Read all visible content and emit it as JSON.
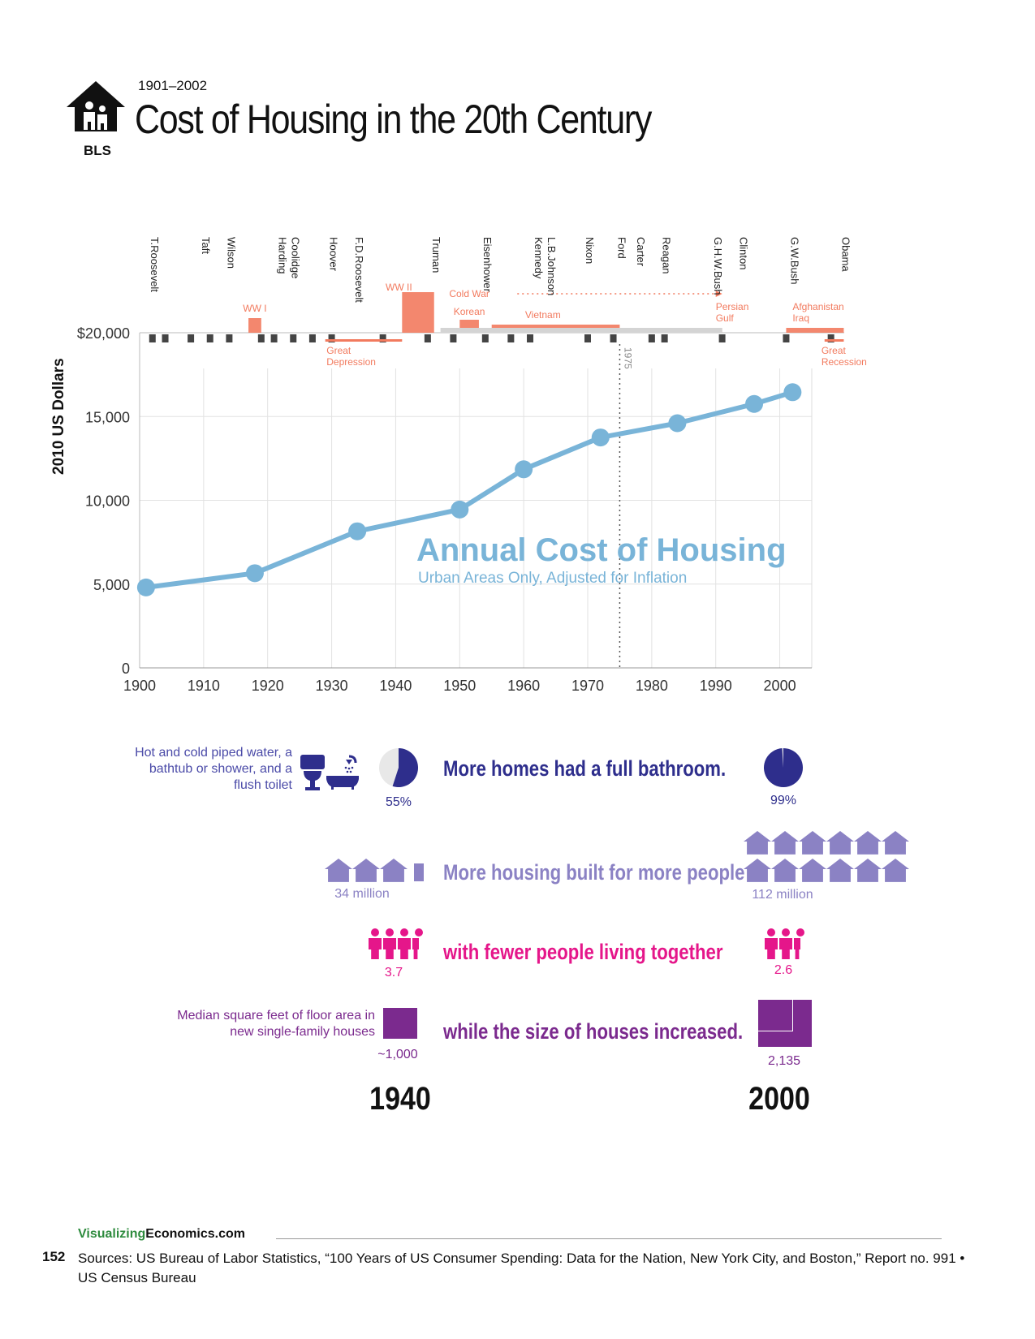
{
  "header": {
    "years": "1901–2002",
    "title": "Cost of Housing in the 20th Century",
    "logo_label": "BLS"
  },
  "chart_data": {
    "type": "line",
    "title": "Annual Cost of Housing",
    "subtitle": "Urban Areas Only, Adjusted for Inflation",
    "ylabel": "2010 US Dollars",
    "xlabel": "",
    "xlim": [
      1900,
      2005
    ],
    "ylim": [
      0,
      20000
    ],
    "x_ticks": [
      1900,
      1910,
      1920,
      1930,
      1940,
      1950,
      1960,
      1970,
      1980,
      1990,
      2000
    ],
    "y_ticks": [
      0,
      5000,
      10000,
      15000,
      20000
    ],
    "y_tick_labels": [
      "0",
      "5,000",
      "10,000",
      "15,000",
      "$20,000"
    ],
    "series": [
      {
        "x": [
          1901,
          1918,
          1934,
          1950,
          1960,
          1972,
          1984,
          1996,
          2002
        ],
        "y": [
          4800,
          5650,
          8150,
          9450,
          11850,
          13750,
          14600,
          15750,
          16450
        ]
      }
    ],
    "marker_1975": "1975",
    "line_color": "#79b4d8",
    "presidents": [
      {
        "name": "T.Roosevelt",
        "year": 1901
      },
      {
        "name": "Taft",
        "year": 1909
      },
      {
        "name": "Wilson",
        "year": 1913
      },
      {
        "name": "Harding",
        "year": 1921
      },
      {
        "name": "Coolidge",
        "year": 1923
      },
      {
        "name": "Hoover",
        "year": 1929
      },
      {
        "name": "F.D.Roosevelt",
        "year": 1933
      },
      {
        "name": "Truman",
        "year": 1945
      },
      {
        "name": "Eisenhower",
        "year": 1953
      },
      {
        "name": "Kennedy",
        "year": 1961
      },
      {
        "name": "L.B.Johnson",
        "year": 1963
      },
      {
        "name": "Nixon",
        "year": 1969
      },
      {
        "name": "Ford",
        "year": 1974
      },
      {
        "name": "Carter",
        "year": 1977
      },
      {
        "name": "Reagan",
        "year": 1981
      },
      {
        "name": "G.H.W.Bush",
        "year": 1989
      },
      {
        "name": "Clinton",
        "year": 1993
      },
      {
        "name": "G.W.Bush",
        "year": 2001
      },
      {
        "name": "Obama",
        "year": 2009
      }
    ],
    "events": [
      {
        "label": "WW I",
        "start": 1917,
        "end": 1919
      },
      {
        "label": "WW II",
        "start": 1941,
        "end": 1946
      },
      {
        "label": "Korean",
        "start": 1950,
        "end": 1953
      },
      {
        "label": "Vietnam",
        "start": 1955,
        "end": 1975
      },
      {
        "label": "Persian Gulf",
        "start": 1990,
        "end": 1991
      },
      {
        "label": "Afghanistan Iraq",
        "start": 2001,
        "end": 2010
      },
      {
        "label": "Cold War",
        "start": 1947,
        "end": 1991
      },
      {
        "label": "Great Depression",
        "start": 1929,
        "end": 1941
      },
      {
        "label": "Great Recession",
        "start": 2007,
        "end": 2009
      }
    ],
    "recessions": [
      1902,
      1904,
      1908,
      1911,
      1914,
      1919,
      1921,
      1924,
      1927,
      1930,
      1938,
      1945,
      1949,
      1954,
      1958,
      1961,
      1970,
      1974,
      1980,
      1982,
      1991,
      2001,
      2008
    ]
  },
  "comparison": {
    "bathroom": {
      "desc": "Hot and cold piped water, a bathtub or shower, and a flush toilet",
      "headline": "More homes had a full bathroom.",
      "v1940": "55%",
      "v2000": "99%",
      "pct1940": 55,
      "pct2000": 99
    },
    "housing": {
      "headline": "More housing built for more people",
      "v1940": "34 million",
      "v2000": "112 million"
    },
    "people": {
      "headline": "with fewer people living together",
      "v1940": "3.7",
      "v2000": "2.6"
    },
    "size": {
      "desc": "Median square feet of floor area in new single-family houses",
      "headline": "while the size of houses increased.",
      "v1940": "~1,000",
      "v2000": "2,135"
    },
    "year_left": "1940",
    "year_right": "2000"
  },
  "colors": {
    "accent_blue": "#79b4d8",
    "navy": "#2e2e8c",
    "lavender": "#8b82c4",
    "magenta": "#e5168a",
    "purple": "#7b2a8e",
    "war": "#f27a5e",
    "recession": "#444444"
  },
  "footer": {
    "site_green": "Visualizing",
    "site_rest": "Economics.com",
    "page": "152",
    "sources": "Sources: US Bureau of Labor Statistics, “100 Years of US Consumer Spending: Data for the Nation, New York City, and Boston,” Report no. 991 • US Census Bureau"
  }
}
